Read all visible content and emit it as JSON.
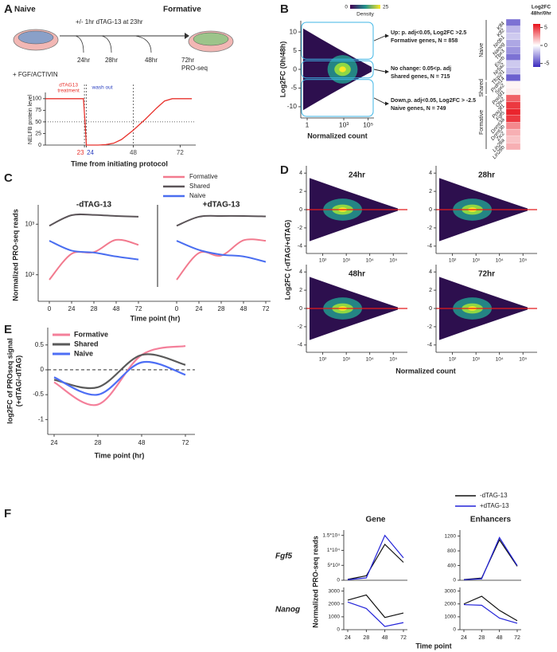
{
  "schematic": {
    "naive": "Naive",
    "formative": "Formative",
    "treatment": "+/- 1hr dTAG-13 at 23hr",
    "media": "+ FGF/ACTIVIN",
    "timepoints": [
      "24hr",
      "28hr",
      "48hr"
    ],
    "endpoint": [
      "72hr",
      "PRO-seq"
    ]
  },
  "chart_data": [
    {
      "panel": "A",
      "type": "line",
      "xlabel": "Time from initiating protocol",
      "ylabel": "NELFB protein level",
      "x": [
        3,
        22.5,
        23.3,
        24,
        30,
        34,
        38,
        42,
        48,
        54,
        60,
        64,
        68,
        74,
        78
      ],
      "series": [
        {
          "color": "#e8322c",
          "values": [
            100,
            100,
            50,
            0,
            0,
            1,
            4,
            12,
            32,
            55,
            80,
            95,
            100,
            100,
            100
          ]
        }
      ],
      "xlim": [
        3,
        80
      ],
      "xticks": [
        23,
        24,
        48,
        72
      ],
      "xtick_colors": [
        "#e8322c",
        "#2a3fc0",
        "#444444",
        "#444444"
      ],
      "ylim": [
        0,
        110
      ],
      "yticks": [
        0,
        25,
        50,
        75,
        100
      ],
      "vlines": [
        23,
        24,
        48
      ],
      "hline": 50,
      "annotations": [
        {
          "lines": [
            "dTAG13",
            "treatment"
          ],
          "color": "#e8322c"
        },
        {
          "lines": [
            "wash out"
          ],
          "color": "#2a3fc0"
        }
      ]
    },
    {
      "panel": "B",
      "type": "scatter",
      "xlabel": "Normalized count",
      "ylabel": "Log2FC (0h/48h)",
      "xlog": true,
      "xlim": [
        0.3,
        300000
      ],
      "xticks": [
        1,
        {
          "value": 1000,
          "label": "10³"
        },
        {
          "value": 100000,
          "label": "10⁵"
        }
      ],
      "ylim": [
        -13,
        13
      ],
      "yticks": [
        -10,
        -5,
        0,
        5,
        10
      ],
      "thresholds": [
        2.5,
        -2.5
      ],
      "box_color": "#3fb6e6",
      "colorbar": {
        "label": "Density",
        "lim": [
          0,
          25
        ],
        "ticks": [
          0,
          25
        ],
        "colors": [
          "#440154",
          "#21918c",
          "#fde725"
        ]
      },
      "annotations": [
        [
          "Up: p. adj<0.05, Log2FC >2.5",
          "Formative genes, N = 858"
        ],
        [
          "No change: 0.05<p. adj",
          "Shared genes, N = 715"
        ],
        [
          "Down,p. adj<0.05, Log2FC > -2.5",
          "Naive genes, N = 749"
        ]
      ]
    },
    {
      "type": "heatmap",
      "colorbar": {
        "label": [
          "Log2FC",
          "48hr/0hr"
        ],
        "lim": [
          -6,
          6
        ],
        "ticks": [
          -5,
          0,
          5
        ],
        "colors": [
          "#3b2bbf",
          "#ffffff",
          "#e8101a"
        ]
      },
      "groups": [
        {
          "name": "Naive",
          "categories": [
            "Klf4",
            "Klf2",
            "Nr0b1",
            "Nanog",
            "Tbx3",
            "Esrrb",
            "Nr5a2",
            "Tfcp2l1",
            "Prdm14"
          ],
          "values": [
            -4,
            -2,
            -1.5,
            -2.5,
            -3,
            -4,
            -1.5,
            -2,
            -4.5
          ]
        },
        {
          "name": "Shared",
          "categories": [
            "Sox2",
            "Pou5f1"
          ],
          "values": [
            0.3,
            0.5
          ]
        },
        {
          "name": "Formative",
          "categories": [
            "Otx2",
            "Pou3f1",
            "Fgf5",
            "Dnmt3a",
            "Dnmt3b",
            "Zic2",
            "Lin28a",
            "Lin28b"
          ],
          "values": [
            4,
            5,
            5.5,
            5,
            3,
            2,
            1.5,
            2
          ]
        }
      ]
    },
    {
      "panel": "C",
      "type": "line",
      "ylabel": "Normalized PRO-seq reads",
      "xlabel": "Time point (hr)",
      "ylog": true,
      "ylim": [
        30,
        1800
      ],
      "yticks": [
        {
          "value": 100,
          "label": "10²"
        },
        {
          "value": 1000,
          "label": "10³"
        }
      ],
      "categories": [
        0,
        24,
        28,
        48,
        72
      ],
      "facets": [
        "-dTAG-13",
        "+dTAG-13"
      ],
      "series": [
        {
          "name": "Formative",
          "color": "#f27a8e",
          "values": [
            [
              80,
              260,
              280,
              490,
              390
            ],
            [
              80,
              270,
              240,
              480,
              470
            ]
          ]
        },
        {
          "name": "Shared",
          "color": "#5b5458",
          "values": [
            [
              930,
              1500,
              1520,
              1450,
              1400
            ],
            [
              930,
              1400,
              1450,
              1450,
              1420
            ]
          ]
        },
        {
          "name": "Naive",
          "color": "#4a6ef0",
          "values": [
            [
              470,
              300,
              275,
              230,
              200
            ],
            [
              470,
              310,
              250,
              230,
              180
            ]
          ]
        }
      ]
    },
    {
      "panel": "D",
      "type": "scatter",
      "facets": [
        "24hr",
        "28hr",
        "48hr",
        "72hr"
      ],
      "xlabel": "Normalized count",
      "ylabel": "Log2FC (-dTAG/+dTAG)",
      "xlog": true,
      "xlim": [
        20,
        400000
      ],
      "xticks": [
        {
          "value": 100,
          "label": "10²"
        },
        {
          "value": 1000,
          "label": "10³"
        },
        {
          "value": 10000,
          "label": "10⁴"
        },
        {
          "value": 100000,
          "label": "10⁵"
        }
      ],
      "ylim": [
        -4.8,
        4.8
      ],
      "yticks": [
        -4,
        -2,
        0,
        2,
        4
      ],
      "hline": 0,
      "hline_color": "#e41a1c"
    },
    {
      "panel": "E",
      "type": "line",
      "ylabel": [
        "log2FC of PROseq signal",
        "(+dTAG/-dTAG)"
      ],
      "xlabel": "Time point (hr)",
      "categories": [
        24,
        28,
        48,
        72
      ],
      "ylim": [
        -1.3,
        0.85
      ],
      "yticks": [
        -1,
        -0.5,
        0,
        0.5
      ],
      "hline": 0,
      "smooth": true,
      "series": [
        {
          "name": "Formative",
          "color": "#f47f9a",
          "values": [
            -0.25,
            -0.7,
            0.3,
            0.48
          ]
        },
        {
          "name": "Shared",
          "color": "#5a5a5a",
          "values": [
            -0.2,
            -0.35,
            0.3,
            0.1
          ]
        },
        {
          "name": "Naive",
          "color": "#4d6ef5",
          "values": [
            -0.15,
            -0.5,
            0.15,
            -0.1
          ]
        }
      ]
    },
    {
      "panel": "F",
      "type": "line",
      "ylabel": "Normalized PRO-seq reads",
      "xlabel": "Time point",
      "categories": [
        24,
        28,
        48,
        72
      ],
      "columns": [
        "Gene",
        "Enhancers"
      ],
      "legend": [
        {
          "name": "-dTAG-13",
          "color": "#111111"
        },
        {
          "name": "+dTAG-13",
          "color": "#2323d9"
        }
      ],
      "rows": [
        {
          "label": "Fgf5",
          "cells": [
            {
              "ylim": [
                0,
                16000
              ],
              "yticks": [
                0,
                {
                  "value": 5000,
                  "label": "5*10³"
                },
                {
                  "value": 10000,
                  "label": "1*10⁴"
                },
                {
                  "value": 15000,
                  "label": "1.5*10⁴"
                }
              ],
              "values": [
                [
                  300,
                  1500,
                  12000,
                  6000
                ],
                [
                  200,
                  800,
                  15000,
                  7500
                ]
              ]
            },
            {
              "ylim": [
                0,
                1300
              ],
              "yticks": [
                0,
                400,
                800,
                1200
              ],
              "values": [
                [
                  20,
                  60,
                  1100,
                  380
                ],
                [
                  15,
                  40,
                  1160,
                  400
                ]
              ]
            }
          ]
        },
        {
          "label": "Nanog",
          "cells": [
            {
              "ylim": [
                0,
                3100
              ],
              "yticks": [
                0,
                1000,
                2000,
                3000
              ],
              "values": [
                [
                  2300,
                  2700,
                  950,
                  1300
                ],
                [
                  2150,
                  1650,
                  250,
                  550
                ]
              ]
            },
            {
              "ylim": [
                0,
                3100
              ],
              "yticks": [
                0,
                1000,
                2000,
                3000
              ],
              "values": [
                [
                  2000,
                  2600,
                  1500,
                  700
                ],
                [
                  1950,
                  1900,
                  900,
                  500
                ]
              ]
            }
          ]
        }
      ]
    }
  ]
}
